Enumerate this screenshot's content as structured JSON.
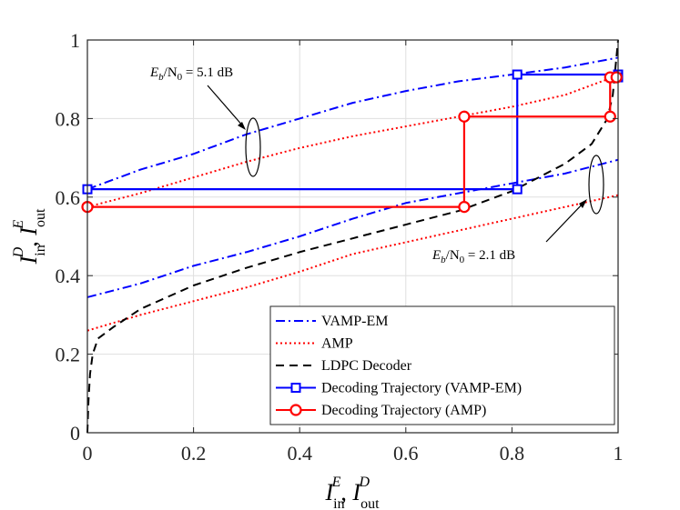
{
  "chart_data": {
    "type": "line",
    "xlim": [
      0,
      1
    ],
    "ylim": [
      0,
      1
    ],
    "x_ticks": [
      "0",
      "0.2",
      "0.4",
      "0.6",
      "0.8",
      "1"
    ],
    "y_ticks": [
      "0",
      "0.2",
      "0.4",
      "0.6",
      "0.8",
      "1"
    ],
    "xlabel": {
      "base": "I",
      "sup": "E",
      "sub": "in",
      "sep": ", ",
      "base2": "I",
      "sup2": "D",
      "sub2": "out"
    },
    "ylabel": {
      "base": "I",
      "sup": "D",
      "sub": "in",
      "sep": ", ",
      "base2": "I",
      "sup2": "E",
      "sub2": "out"
    },
    "annotations": [
      {
        "id": "snr-high",
        "prefix": "E",
        "sub": "b",
        "mid": "/N",
        "sub2": "0",
        "suffix": " = 5.1 dB"
      },
      {
        "id": "snr-low",
        "prefix": "E",
        "sub": "b",
        "mid": "/N",
        "sub2": "0",
        "suffix": " = 2.1 dB"
      }
    ],
    "series": [
      {
        "name": "VAMP-EM",
        "color": "#0000ff",
        "style": "dashdot",
        "x": [
          0,
          0.1,
          0.2,
          0.3,
          0.4,
          0.5,
          0.6,
          0.7,
          0.8,
          0.9,
          1.0
        ],
        "y": [
          0.62,
          0.67,
          0.71,
          0.76,
          0.8,
          0.84,
          0.87,
          0.895,
          0.912,
          0.93,
          0.955
        ]
      },
      {
        "name": "VAMP-EM",
        "color": "#0000ff",
        "style": "dashdot",
        "x": [
          0,
          0.1,
          0.2,
          0.3,
          0.4,
          0.5,
          0.6,
          0.7,
          0.8,
          0.9,
          1.0
        ],
        "y": [
          0.345,
          0.38,
          0.425,
          0.46,
          0.5,
          0.545,
          0.585,
          0.61,
          0.635,
          0.66,
          0.695
        ]
      },
      {
        "name": "AMP",
        "color": "#ff0000",
        "style": "dotted",
        "x": [
          0,
          0.1,
          0.2,
          0.3,
          0.4,
          0.5,
          0.6,
          0.7,
          0.8,
          0.9,
          1.0
        ],
        "y": [
          0.575,
          0.61,
          0.65,
          0.69,
          0.725,
          0.755,
          0.78,
          0.805,
          0.83,
          0.86,
          0.91
        ]
      },
      {
        "name": "AMP",
        "color": "#ff0000",
        "style": "dotted",
        "x": [
          0,
          0.1,
          0.2,
          0.3,
          0.4,
          0.5,
          0.6,
          0.7,
          0.8,
          0.9,
          1.0
        ],
        "y": [
          0.26,
          0.3,
          0.335,
          0.37,
          0.41,
          0.455,
          0.485,
          0.515,
          0.545,
          0.575,
          0.605
        ]
      },
      {
        "name": "LDPC Decoder",
        "color": "#000000",
        "style": "dashed",
        "x": [
          0.0,
          0.002,
          0.005,
          0.01,
          0.02,
          0.05,
          0.1,
          0.2,
          0.3,
          0.4,
          0.5,
          0.6,
          0.7,
          0.8,
          0.9,
          0.95,
          0.98,
          0.99,
          0.995,
          1.0
        ],
        "y": [
          0.0,
          0.08,
          0.15,
          0.2,
          0.24,
          0.27,
          0.315,
          0.375,
          0.42,
          0.46,
          0.495,
          0.53,
          0.565,
          0.615,
          0.685,
          0.735,
          0.8,
          0.86,
          0.93,
          1.0
        ]
      },
      {
        "name": "Decoding Trajectory (VAMP-EM)",
        "color": "#0000ff",
        "style": "solid",
        "marker": "square",
        "x": [
          0,
          0.81,
          0.81,
          1.0,
          1.0
        ],
        "y": [
          0.62,
          0.62,
          0.912,
          0.912,
          0.905
        ]
      },
      {
        "name": "Decoding Trajectory (AMP)",
        "color": "#ff0000",
        "style": "solid",
        "marker": "circle",
        "x": [
          0,
          0.71,
          0.71,
          0.985,
          0.985,
          0.997
        ],
        "y": [
          0.575,
          0.575,
          0.805,
          0.805,
          0.905,
          0.905
        ]
      }
    ],
    "legend": {
      "placement": "bottom-right",
      "entries": [
        {
          "label": "VAMP-EM",
          "color": "#0000ff",
          "style": "dashdot",
          "marker": "none"
        },
        {
          "label": "AMP",
          "color": "#ff0000",
          "style": "dotted",
          "marker": "none"
        },
        {
          "label": "LDPC Decoder",
          "color": "#000000",
          "style": "dashed",
          "marker": "none"
        },
        {
          "label": "Decoding Trajectory (VAMP-EM)",
          "color": "#0000ff",
          "style": "solid",
          "marker": "square"
        },
        {
          "label": "Decoding Trajectory (AMP)",
          "color": "#ff0000",
          "style": "solid",
          "marker": "circle"
        }
      ]
    }
  }
}
